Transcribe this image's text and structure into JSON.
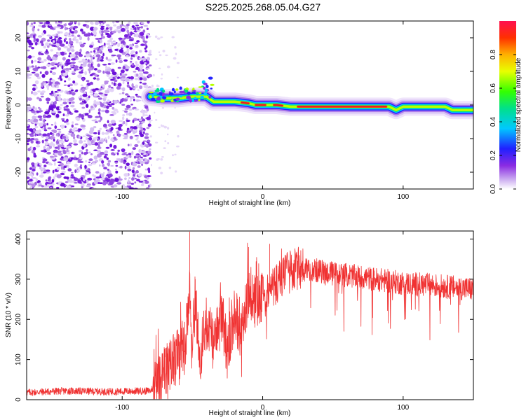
{
  "title": "S225.2025.268.05.04.G27",
  "chart_data": [
    {
      "type": "heatmap",
      "xlabel": "Height of straight line (km)",
      "ylabel": "Frequency (Hz)",
      "xlim": [
        -168,
        150
      ],
      "ylim": [
        -25,
        25
      ],
      "xticks": [
        -100,
        0,
        100
      ],
      "yticks": [
        -20,
        -10,
        0,
        10,
        20
      ],
      "grid": false,
      "noise_region_x": [
        -168,
        -80
      ],
      "ridge": [
        {
          "x": -80,
          "y": 2.5
        },
        {
          "x": -70,
          "y": 2.0
        },
        {
          "x": -60,
          "y": 2.0
        },
        {
          "x": -50,
          "y": 2.5
        },
        {
          "x": -40,
          "y": 2.5
        },
        {
          "x": -35,
          "y": 1.0
        },
        {
          "x": -20,
          "y": 1.0
        },
        {
          "x": -10,
          "y": 0.5
        },
        {
          "x": -5,
          "y": 0.0
        },
        {
          "x": 0,
          "y": 0.0
        },
        {
          "x": 10,
          "y": 0.0
        },
        {
          "x": 20,
          "y": -0.5
        },
        {
          "x": 30,
          "y": -0.5
        },
        {
          "x": 90,
          "y": -0.5
        },
        {
          "x": 95,
          "y": -1.5
        },
        {
          "x": 100,
          "y": -0.5
        },
        {
          "x": 130,
          "y": -0.5
        },
        {
          "x": 135,
          "y": -1.5
        },
        {
          "x": 150,
          "y": -1.5
        }
      ],
      "colorbar": {
        "label": "Normalized spectral amplitude",
        "range": [
          0,
          1
        ],
        "ticks": [
          "0.0",
          "0.2",
          "0.4",
          "0.6",
          "0.8"
        ]
      }
    },
    {
      "type": "line",
      "xlabel": "Height of straight line (km)",
      "ylabel": "SNR (10 * v/v)",
      "xlim": [
        -168,
        150
      ],
      "ylim": [
        0,
        420
      ],
      "xticks": [
        -100,
        0,
        100
      ],
      "yticks": [
        0,
        100,
        200,
        300,
        400
      ],
      "grid": false,
      "color": "#f03232",
      "series": [
        {
          "x": [
            -168,
            -140,
            -110,
            -80,
            -75,
            -65,
            -55,
            -52,
            -50,
            -48,
            -45,
            -40,
            -35,
            -30,
            -25,
            -20,
            -15,
            -10,
            -5,
            0,
            5,
            10,
            20,
            30,
            40,
            60,
            80,
            100,
            120,
            150
          ],
          "y": [
            18,
            22,
            20,
            22,
            40,
            90,
            140,
            300,
            120,
            260,
            100,
            190,
            140,
            230,
            120,
            220,
            160,
            280,
            240,
            250,
            270,
            290,
            320,
            330,
            320,
            310,
            300,
            290,
            285,
            275
          ]
        }
      ]
    }
  ]
}
